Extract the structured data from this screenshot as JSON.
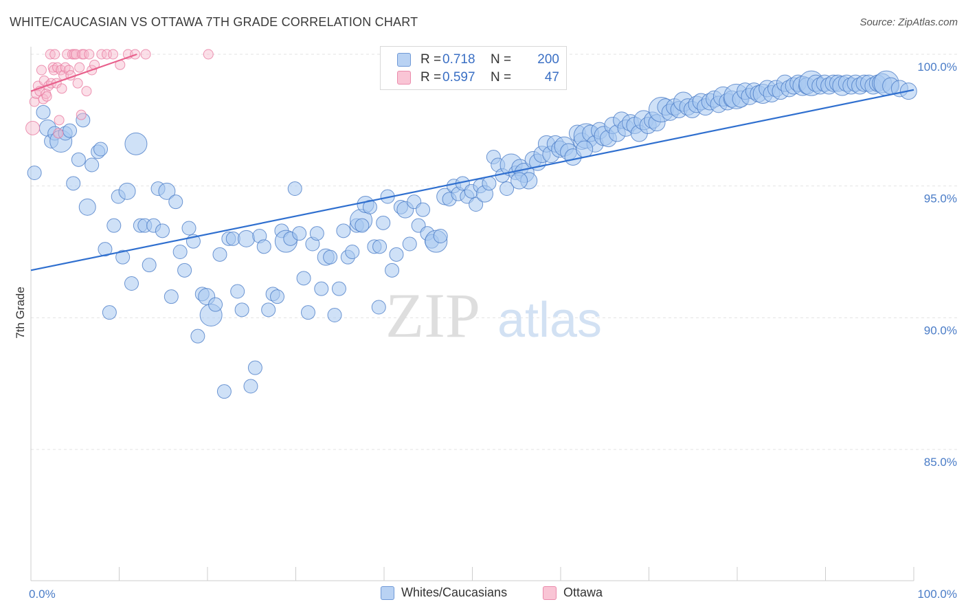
{
  "title": "WHITE/CAUCASIAN VS OTTAWA 7TH GRADE CORRELATION CHART",
  "source": "Source: ZipAtlas.com",
  "colors": {
    "blue_fill": "#a8c8f0",
    "blue_stroke": "#4a7cc7",
    "blue_line": "#2f6fcf",
    "pink_fill": "#f7b8cb",
    "pink_stroke": "#e87aa0",
    "pink_line": "#e8608c",
    "axis_label": "#4a7cc7",
    "grid": "#e3e3e3"
  },
  "legend": {
    "rows": [
      {
        "r_label": "R =",
        "r_value": "0.718",
        "n_label": "N =",
        "n_value": "200"
      },
      {
        "r_label": "R =",
        "r_value": "0.597",
        "n_label": "N =",
        "n_value": "47"
      }
    ]
  },
  "bottom_legend": [
    "Whites/Caucasians",
    "Ottawa"
  ],
  "watermark": {
    "zip": "ZIP",
    "atlas": "atlas"
  },
  "chart_data": {
    "type": "scatter",
    "title": "WHITE/CAUCASIAN VS OTTAWA 7TH GRADE CORRELATION CHART",
    "xlabel": "",
    "ylabel": "7th Grade",
    "xlim": [
      0,
      100
    ],
    "ylim": [
      80.0,
      100.5
    ],
    "x_tick_labels": [
      "0.0%",
      "100.0%"
    ],
    "y_ticks": [
      85.0,
      90.0,
      95.0,
      100.0
    ],
    "y_tick_labels": [
      "85.0%",
      "90.0%",
      "95.0%",
      "100.0%"
    ],
    "grid": true,
    "legend_position": "top-center",
    "series": [
      {
        "name": "Whites/Caucasians",
        "r": 0.718,
        "n": 200,
        "trend": {
          "x": [
            0,
            100
          ],
          "y": [
            91.8,
            98.65
          ]
        },
        "points": [
          [
            0.4,
            95.5
          ],
          [
            1.4,
            97.8
          ],
          [
            1.9,
            97.2
          ],
          [
            2.3,
            96.7
          ],
          [
            2.7,
            97.0
          ],
          [
            3.4,
            96.7
          ],
          [
            3.9,
            97.0
          ],
          [
            4.4,
            97.1
          ],
          [
            4.8,
            95.1
          ],
          [
            5.4,
            96.0
          ],
          [
            5.9,
            97.5
          ],
          [
            6.4,
            94.2
          ],
          [
            6.9,
            95.8
          ],
          [
            7.6,
            96.3
          ],
          [
            7.9,
            96.4
          ],
          [
            8.4,
            92.6
          ],
          [
            8.9,
            90.2
          ],
          [
            9.4,
            93.5
          ],
          [
            9.9,
            94.6
          ],
          [
            10.4,
            92.3
          ],
          [
            10.9,
            94.8
          ],
          [
            11.4,
            91.3
          ],
          [
            11.9,
            96.6
          ],
          [
            12.4,
            93.5
          ],
          [
            12.9,
            93.5
          ],
          [
            13.4,
            92.0
          ],
          [
            13.9,
            93.5
          ],
          [
            14.4,
            94.9
          ],
          [
            14.9,
            93.3
          ],
          [
            15.4,
            94.8
          ],
          [
            15.9,
            90.8
          ],
          [
            16.4,
            94.4
          ],
          [
            16.9,
            92.5
          ],
          [
            17.4,
            91.8
          ],
          [
            17.9,
            93.4
          ],
          [
            18.4,
            92.9
          ],
          [
            18.9,
            89.3
          ],
          [
            19.4,
            90.9
          ],
          [
            19.9,
            90.8
          ],
          [
            20.4,
            90.1
          ],
          [
            20.9,
            90.5
          ],
          [
            21.4,
            92.4
          ],
          [
            21.9,
            87.2
          ],
          [
            22.4,
            93.0
          ],
          [
            22.9,
            93.0
          ],
          [
            23.4,
            91.0
          ],
          [
            23.9,
            90.3
          ],
          [
            24.4,
            93.0
          ],
          [
            24.9,
            87.4
          ],
          [
            25.4,
            88.1
          ],
          [
            25.9,
            93.1
          ],
          [
            26.4,
            92.7
          ],
          [
            26.9,
            90.3
          ],
          [
            27.4,
            90.9
          ],
          [
            27.9,
            90.8
          ],
          [
            28.4,
            93.3
          ],
          [
            28.9,
            92.9
          ],
          [
            29.4,
            93.0
          ],
          [
            29.9,
            94.9
          ],
          [
            30.4,
            93.2
          ],
          [
            30.9,
            91.5
          ],
          [
            31.4,
            90.2
          ],
          [
            31.9,
            92.8
          ],
          [
            32.4,
            93.2
          ],
          [
            32.9,
            91.1
          ],
          [
            33.4,
            92.3
          ],
          [
            33.9,
            92.3
          ],
          [
            34.4,
            90.1
          ],
          [
            34.9,
            91.1
          ],
          [
            35.4,
            93.3
          ],
          [
            35.9,
            92.3
          ],
          [
            36.4,
            92.5
          ],
          [
            36.9,
            93.5
          ],
          [
            37.4,
            93.7
          ],
          [
            37.9,
            94.3
          ],
          [
            38.4,
            94.2
          ],
          [
            38.9,
            92.7
          ],
          [
            39.4,
            90.4
          ],
          [
            39.9,
            93.6
          ],
          [
            40.4,
            94.6
          ],
          [
            40.9,
            91.8
          ],
          [
            41.4,
            92.4
          ],
          [
            41.9,
            94.2
          ],
          [
            42.4,
            94.1
          ],
          [
            42.9,
            92.8
          ],
          [
            43.4,
            94.4
          ],
          [
            43.9,
            93.5
          ],
          [
            44.4,
            94.1
          ],
          [
            44.9,
            93.2
          ],
          [
            45.4,
            92.9
          ],
          [
            45.9,
            92.9
          ],
          [
            46.4,
            93.1
          ],
          [
            46.9,
            94.6
          ],
          [
            47.4,
            94.5
          ],
          [
            47.9,
            95.0
          ],
          [
            48.4,
            94.7
          ],
          [
            48.9,
            95.1
          ],
          [
            49.4,
            94.6
          ],
          [
            49.9,
            94.8
          ],
          [
            50.4,
            94.3
          ],
          [
            50.9,
            95.0
          ],
          [
            51.4,
            94.7
          ],
          [
            51.9,
            95.1
          ],
          [
            52.4,
            96.1
          ],
          [
            52.9,
            95.8
          ],
          [
            53.4,
            95.4
          ],
          [
            53.9,
            94.9
          ],
          [
            54.4,
            95.8
          ],
          [
            54.9,
            95.5
          ],
          [
            55.4,
            95.7
          ],
          [
            55.9,
            95.5
          ],
          [
            56.4,
            95.2
          ],
          [
            56.9,
            96.0
          ],
          [
            57.4,
            95.9
          ],
          [
            57.9,
            96.2
          ],
          [
            58.4,
            96.6
          ],
          [
            58.9,
            96.2
          ],
          [
            59.4,
            96.6
          ],
          [
            59.9,
            96.4
          ],
          [
            60.4,
            96.5
          ],
          [
            60.9,
            96.3
          ],
          [
            61.4,
            96.1
          ],
          [
            61.9,
            97.0
          ],
          [
            62.4,
            96.7
          ],
          [
            62.9,
            96.9
          ],
          [
            63.4,
            97.0
          ],
          [
            63.9,
            96.6
          ],
          [
            64.4,
            97.1
          ],
          [
            64.9,
            96.9
          ],
          [
            65.4,
            96.8
          ],
          [
            65.9,
            97.3
          ],
          [
            66.4,
            97.0
          ],
          [
            66.9,
            97.5
          ],
          [
            67.4,
            97.2
          ],
          [
            67.9,
            97.4
          ],
          [
            68.4,
            97.3
          ],
          [
            68.9,
            97.0
          ],
          [
            69.4,
            97.5
          ],
          [
            69.9,
            97.3
          ],
          [
            70.4,
            97.5
          ],
          [
            70.9,
            97.4
          ],
          [
            71.4,
            97.9
          ],
          [
            71.9,
            98.0
          ],
          [
            72.4,
            97.8
          ],
          [
            72.9,
            98.0
          ],
          [
            73.4,
            97.9
          ],
          [
            73.9,
            98.2
          ],
          [
            74.4,
            98.0
          ],
          [
            74.9,
            97.9
          ],
          [
            75.4,
            98.1
          ],
          [
            75.9,
            98.2
          ],
          [
            76.4,
            98.0
          ],
          [
            76.9,
            98.2
          ],
          [
            77.4,
            98.3
          ],
          [
            77.9,
            98.1
          ],
          [
            78.4,
            98.4
          ],
          [
            78.9,
            98.2
          ],
          [
            79.4,
            98.3
          ],
          [
            79.9,
            98.4
          ],
          [
            80.4,
            98.3
          ],
          [
            80.9,
            98.6
          ],
          [
            81.4,
            98.4
          ],
          [
            81.9,
            98.6
          ],
          [
            82.4,
            98.5
          ],
          [
            82.9,
            98.5
          ],
          [
            83.4,
            98.7
          ],
          [
            83.9,
            98.5
          ],
          [
            84.4,
            98.7
          ],
          [
            84.9,
            98.6
          ],
          [
            85.4,
            98.9
          ],
          [
            85.9,
            98.7
          ],
          [
            86.4,
            98.8
          ],
          [
            86.9,
            98.9
          ],
          [
            87.4,
            98.8
          ],
          [
            87.9,
            98.8
          ],
          [
            88.4,
            98.9
          ],
          [
            88.9,
            98.9
          ],
          [
            89.4,
            98.8
          ],
          [
            89.9,
            98.9
          ],
          [
            90.4,
            98.8
          ],
          [
            90.9,
            98.9
          ],
          [
            91.4,
            98.9
          ],
          [
            91.9,
            98.8
          ],
          [
            92.4,
            98.9
          ],
          [
            92.9,
            98.8
          ],
          [
            93.4,
            98.9
          ],
          [
            93.9,
            98.8
          ],
          [
            94.4,
            98.9
          ],
          [
            94.9,
            98.9
          ],
          [
            95.4,
            98.8
          ],
          [
            95.9,
            98.9
          ],
          [
            96.4,
            98.9
          ],
          [
            96.9,
            98.9
          ],
          [
            97.4,
            98.8
          ],
          [
            98.4,
            98.7
          ],
          [
            99.4,
            98.6
          ],
          [
            37.5,
            93.5
          ],
          [
            39.5,
            92.7
          ],
          [
            55.3,
            95.2
          ],
          [
            62.7,
            96.4
          ]
        ]
      },
      {
        "name": "Ottawa",
        "r": 0.597,
        "n": 47,
        "trend": {
          "x": [
            0,
            12
          ],
          "y": [
            98.6,
            100.0
          ]
        },
        "points": [
          [
            0.2,
            97.2
          ],
          [
            0.4,
            98.2
          ],
          [
            0.6,
            98.5
          ],
          [
            0.8,
            98.8
          ],
          [
            1.0,
            98.6
          ],
          [
            1.2,
            99.4
          ],
          [
            1.4,
            98.3
          ],
          [
            1.5,
            99.0
          ],
          [
            1.7,
            98.5
          ],
          [
            1.8,
            98.4
          ],
          [
            2.0,
            98.8
          ],
          [
            2.2,
            100.0
          ],
          [
            2.3,
            98.9
          ],
          [
            2.5,
            99.5
          ],
          [
            2.6,
            99.4
          ],
          [
            2.7,
            100.0
          ],
          [
            2.9,
            98.9
          ],
          [
            3.0,
            99.5
          ],
          [
            3.1,
            97.0
          ],
          [
            3.2,
            97.5
          ],
          [
            3.4,
            99.4
          ],
          [
            3.5,
            98.7
          ],
          [
            3.7,
            99.2
          ],
          [
            3.9,
            99.5
          ],
          [
            4.1,
            100.0
          ],
          [
            4.3,
            99.4
          ],
          [
            4.5,
            99.2
          ],
          [
            4.7,
            100.0
          ],
          [
            4.9,
            100.0
          ],
          [
            5.1,
            100.0
          ],
          [
            5.3,
            98.9
          ],
          [
            5.5,
            99.5
          ],
          [
            5.7,
            97.7
          ],
          [
            5.8,
            100.0
          ],
          [
            6.0,
            100.0
          ],
          [
            6.3,
            98.6
          ],
          [
            6.6,
            100.0
          ],
          [
            6.9,
            99.4
          ],
          [
            7.2,
            99.6
          ],
          [
            8.0,
            100.0
          ],
          [
            8.6,
            100.0
          ],
          [
            9.3,
            100.0
          ],
          [
            10.1,
            99.6
          ],
          [
            11.0,
            100.0
          ],
          [
            11.8,
            100.0
          ],
          [
            13.0,
            100.0
          ],
          [
            20.1,
            100.0
          ]
        ]
      }
    ]
  }
}
